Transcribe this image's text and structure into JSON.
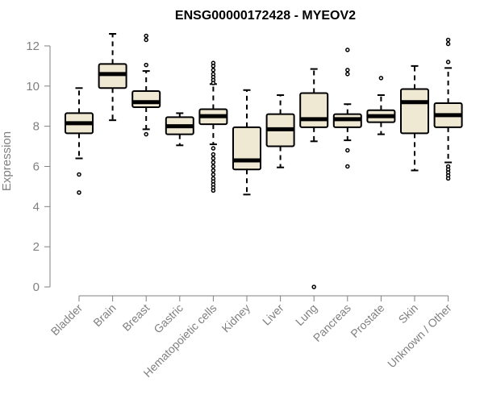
{
  "chart_data": {
    "type": "boxplot",
    "title": "ENSG00000172428 - MYEOV2",
    "xlabel": "",
    "ylabel": "Expression",
    "ylim": [
      0,
      12.6
    ],
    "yticks": [
      0,
      2,
      4,
      6,
      8,
      10,
      12
    ],
    "grid": false,
    "colors": {
      "box_fill": "#efe8d2",
      "box_stroke": "#000000",
      "median": "#000000",
      "axis": "#808080"
    },
    "categories": [
      "Bladder",
      "Brain",
      "Breast",
      "Gastric",
      "Hematopoietic cells",
      "Kidney",
      "Liver",
      "Lung",
      "Pancreas",
      "Prostate",
      "Skin",
      "Unknown / Other"
    ],
    "boxes": [
      {
        "category": "Bladder",
        "whisker_low": 6.4,
        "q1": 7.65,
        "median": 8.15,
        "q3": 8.65,
        "whisker_high": 9.9,
        "outliers": [
          5.6,
          4.7
        ]
      },
      {
        "category": "Brain",
        "whisker_low": 8.3,
        "q1": 9.9,
        "median": 10.6,
        "q3": 11.1,
        "whisker_high": 12.6,
        "outliers": []
      },
      {
        "category": "Breast",
        "whisker_low": 7.85,
        "q1": 8.95,
        "median": 9.2,
        "q3": 9.75,
        "whisker_high": 10.75,
        "outliers": [
          12.5,
          12.3,
          11.05,
          7.6
        ]
      },
      {
        "category": "Gastric",
        "whisker_low": 7.05,
        "q1": 7.6,
        "median": 8.0,
        "q3": 8.45,
        "whisker_high": 8.65,
        "outliers": []
      },
      {
        "category": "Hematopoietic cells",
        "whisker_low": 7.1,
        "q1": 8.1,
        "median": 8.5,
        "q3": 8.85,
        "whisker_high": 10.1,
        "outliers": [
          11.15,
          11.0,
          10.8,
          10.6,
          10.45,
          10.3,
          10.15,
          6.9,
          6.6,
          6.4,
          6.2,
          6.0,
          5.8,
          5.6,
          5.4,
          5.25,
          5.1,
          4.95,
          4.8
        ]
      },
      {
        "category": "Kidney",
        "whisker_low": 4.6,
        "q1": 5.85,
        "median": 6.3,
        "q3": 7.95,
        "whisker_high": 9.8,
        "outliers": []
      },
      {
        "category": "Liver",
        "whisker_low": 5.95,
        "q1": 7.0,
        "median": 7.85,
        "q3": 8.6,
        "whisker_high": 9.55,
        "outliers": []
      },
      {
        "category": "Lung",
        "whisker_low": 7.25,
        "q1": 7.95,
        "median": 8.35,
        "q3": 9.65,
        "whisker_high": 10.85,
        "outliers": [
          0.0
        ]
      },
      {
        "category": "Pancreas",
        "whisker_low": 7.3,
        "q1": 7.95,
        "median": 8.35,
        "q3": 8.6,
        "whisker_high": 9.1,
        "outliers": [
          11.8,
          10.8,
          10.6,
          6.8,
          6.0
        ]
      },
      {
        "category": "Prostate",
        "whisker_low": 7.6,
        "q1": 8.2,
        "median": 8.5,
        "q3": 8.8,
        "whisker_high": 9.55,
        "outliers": [
          10.4
        ]
      },
      {
        "category": "Skin",
        "whisker_low": 5.8,
        "q1": 7.65,
        "median": 9.2,
        "q3": 9.85,
        "whisker_high": 11.0,
        "outliers": []
      },
      {
        "category": "Unknown / Other",
        "whisker_low": 6.2,
        "q1": 7.95,
        "median": 8.55,
        "q3": 9.15,
        "whisker_high": 10.9,
        "outliers": [
          12.3,
          12.1,
          11.2,
          6.0,
          5.85,
          5.7,
          5.55,
          5.4
        ]
      }
    ]
  }
}
